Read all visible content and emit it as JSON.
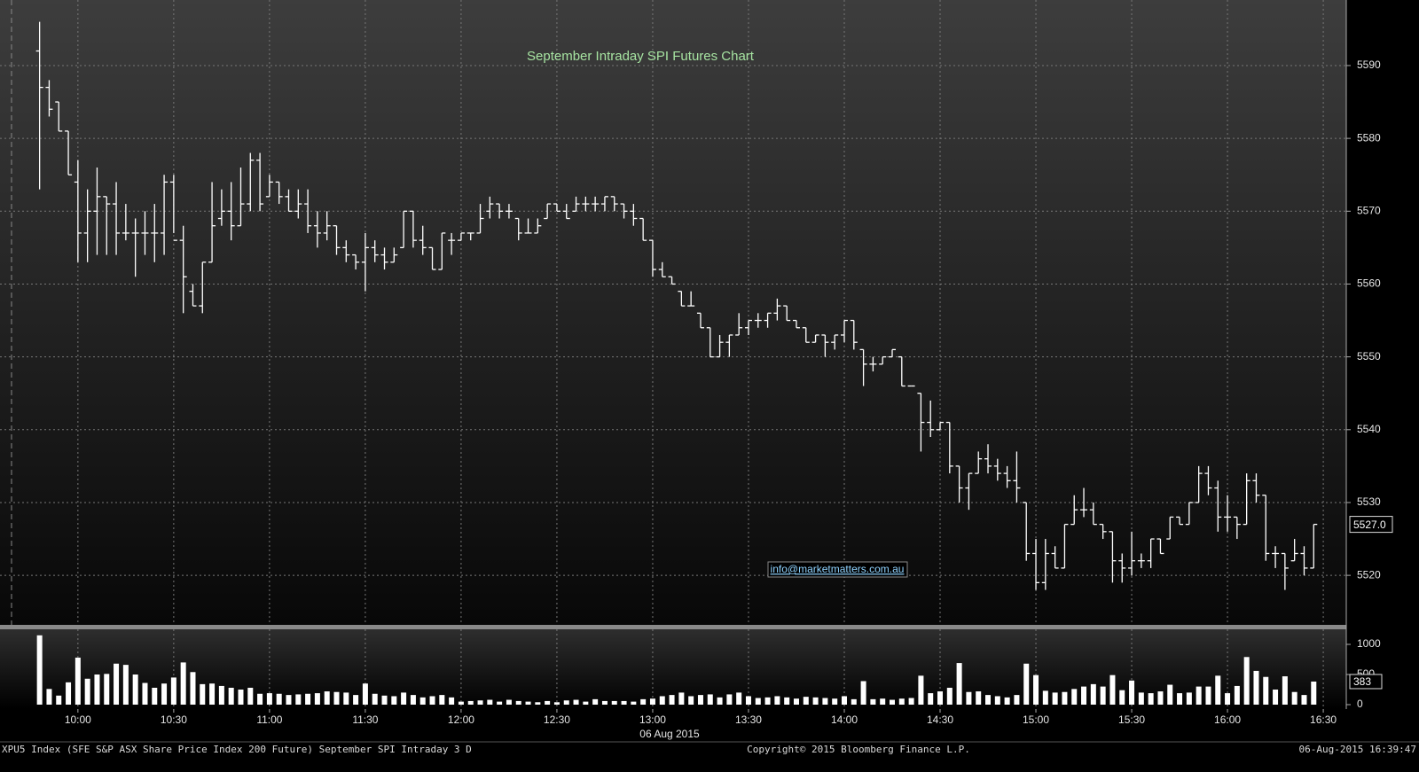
{
  "chart_data": {
    "type": "ohlc",
    "title": "September Intraday SPI Futures Chart",
    "annotation": "info@marketmatters.com.au",
    "x_date_label": "06 Aug 2015",
    "footer_left": "XPU5 Index (SFE S&P ASX Share Price Index 200 Future) September SPI Intraday 3 D",
    "footer_center": "Copyright© 2015 Bloomberg Finance L.P.",
    "footer_right": "06-Aug-2015 16:39:47",
    "color": "#ffffff",
    "grid": true,
    "xlim": [
      575.6,
      997.2
    ],
    "xticks": [
      {
        "value": 600,
        "label": "10:00"
      },
      {
        "value": 630,
        "label": "10:30"
      },
      {
        "value": 660,
        "label": "11:00"
      },
      {
        "value": 690,
        "label": "11:30"
      },
      {
        "value": 720,
        "label": "12:00"
      },
      {
        "value": 750,
        "label": "12:30"
      },
      {
        "value": 780,
        "label": "13:00"
      },
      {
        "value": 810,
        "label": "13:30"
      },
      {
        "value": 840,
        "label": "14:00"
      },
      {
        "value": 870,
        "label": "14:30"
      },
      {
        "value": 900,
        "label": "15:00"
      },
      {
        "value": 930,
        "label": "15:30"
      },
      {
        "value": 960,
        "label": "16:00"
      },
      {
        "value": 990,
        "label": "16:30"
      }
    ],
    "ylim": [
      5513.2,
      5599
    ],
    "yticks": [
      5520,
      5530,
      5540,
      5550,
      5560,
      5570,
      5580,
      5590
    ],
    "x": [
      588,
      591,
      594,
      597,
      600,
      603,
      606,
      609,
      612,
      615,
      618,
      621,
      624,
      627,
      630,
      633,
      636,
      639,
      642,
      645,
      648,
      651,
      654,
      657,
      660,
      663,
      666,
      669,
      672,
      675,
      678,
      681,
      684,
      687,
      690,
      693,
      696,
      699,
      702,
      705,
      708,
      711,
      714,
      717,
      720,
      723,
      726,
      729,
      732,
      735,
      738,
      741,
      744,
      747,
      750,
      753,
      756,
      759,
      762,
      765,
      768,
      771,
      774,
      777,
      780,
      783,
      786,
      789,
      792,
      795,
      798,
      801,
      804,
      807,
      810,
      813,
      816,
      819,
      822,
      825,
      828,
      831,
      834,
      837,
      840,
      843,
      846,
      849,
      852,
      855,
      858,
      861,
      864,
      867,
      870,
      873,
      876,
      879,
      882,
      885,
      888,
      891,
      894,
      897,
      900,
      903,
      906,
      909,
      912,
      915,
      918,
      921,
      924,
      927,
      930,
      933,
      936,
      939,
      942,
      945,
      948,
      951,
      954,
      957,
      960,
      963,
      966,
      969,
      972,
      975,
      978,
      981,
      984,
      987
    ],
    "ohlc": {
      "open": [
        5592,
        5587,
        5585,
        5581,
        5574,
        5567,
        5570,
        5572,
        5571,
        5567,
        5567,
        5567,
        5567,
        5567,
        5574,
        5566,
        5559,
        5557,
        5563,
        5569,
        5570,
        5568,
        5571,
        5577,
        5572,
        5574,
        5572,
        5570,
        5571,
        5568,
        5567,
        5568,
        5565,
        5564,
        5563,
        5565,
        5564,
        5563,
        5565,
        5570,
        5566,
        5565,
        5562,
        5566,
        5566,
        5567,
        5567,
        5570,
        5571,
        5570,
        5569,
        5567,
        5567,
        5569,
        5571,
        5570,
        5570,
        5571,
        5571,
        5571,
        5572,
        5571,
        5570,
        5569,
        5566,
        5562,
        5561,
        5559,
        5557,
        5556,
        5554,
        5550,
        5552,
        5553,
        5554,
        5555,
        5555,
        5556,
        5557,
        5555,
        5554,
        5552,
        5553,
        5552,
        5553,
        5555,
        5551,
        5549,
        5549,
        5550,
        5550,
        5546,
        5545,
        5541,
        5540,
        5541,
        5535,
        5532,
        5534,
        5536,
        5535,
        5534,
        5533,
        5530,
        5523,
        5519,
        5523,
        5521,
        5527,
        5529,
        5529,
        5527,
        5526,
        5522,
        5521,
        5522,
        5522,
        5525,
        5525,
        5528,
        5527,
        5530,
        5534,
        5532,
        5528,
        5528,
        5527,
        5533,
        5531,
        5523,
        5523,
        5522,
        5523,
        5521
      ],
      "high": [
        5596,
        5588,
        5585,
        5581,
        5577,
        5573,
        5576,
        5572,
        5574,
        5571,
        5569,
        5570,
        5571,
        5575,
        5575,
        5568,
        5560,
        5563,
        5574,
        5573,
        5574,
        5576,
        5578,
        5578,
        5575,
        5574,
        5573,
        5573,
        5573,
        5570,
        5570,
        5568,
        5566,
        5564,
        5567,
        5566,
        5565,
        5565,
        5570,
        5570,
        5568,
        5565,
        5567,
        5567,
        5567,
        5567,
        5571,
        5572,
        5571,
        5571,
        5569,
        5569,
        5569,
        5571,
        5571,
        5571,
        5572,
        5572,
        5572,
        5572,
        5572,
        5571,
        5571,
        5569,
        5566,
        5563,
        5561,
        5559,
        5559,
        5556,
        5554,
        5553,
        5553,
        5556,
        5555,
        5556,
        5556,
        5558,
        5557,
        5555,
        5554,
        5553,
        5553,
        5553,
        5555,
        5555,
        5551,
        5550,
        5550,
        5551,
        5550,
        5546,
        5545,
        5544,
        5541,
        5541,
        5535,
        5534,
        5537,
        5538,
        5536,
        5535,
        5537,
        5530,
        5525,
        5525,
        5524,
        5527,
        5531,
        5532,
        5530,
        5527,
        5526,
        5523,
        5526,
        5523,
        5525,
        5525,
        5528,
        5528,
        5530,
        5535,
        5535,
        5533,
        5531,
        5528,
        5534,
        5534,
        5531,
        5524,
        5523,
        5525,
        5524,
        5527
      ],
      "low": [
        5573,
        5583,
        5581,
        5575,
        5563,
        5563,
        5564,
        5564,
        5564,
        5566,
        5561,
        5564,
        5563,
        5564,
        5567,
        5556,
        5557,
        5556,
        5563,
        5568,
        5566,
        5568,
        5570,
        5570,
        5572,
        5571,
        5570,
        5569,
        5567,
        5565,
        5566,
        5564,
        5563,
        5562,
        5559,
        5563,
        5562,
        5563,
        5565,
        5565,
        5564,
        5562,
        5562,
        5564,
        5566,
        5566,
        5567,
        5569,
        5569,
        5569,
        5566,
        5567,
        5567,
        5569,
        5570,
        5569,
        5570,
        5570,
        5570,
        5570,
        5570,
        5569,
        5568,
        5566,
        5561,
        5561,
        5560,
        5557,
        5557,
        5554,
        5550,
        5550,
        5550,
        5553,
        5553,
        5554,
        5554,
        5555,
        5555,
        5554,
        5552,
        5552,
        5550,
        5551,
        5552,
        5551,
        5546,
        5548,
        5549,
        5550,
        5546,
        5546,
        5537,
        5539,
        5540,
        5534,
        5530,
        5529,
        5534,
        5534,
        5533,
        5532,
        5530,
        5522,
        5518,
        5518,
        5521,
        5521,
        5527,
        5528,
        5527,
        5525,
        5519,
        5519,
        5520,
        5521,
        5521,
        5523,
        5525,
        5527,
        5527,
        5530,
        5531,
        5526,
        5526,
        5525,
        5527,
        5530,
        5522,
        5521,
        5518,
        5522,
        5520,
        5521
      ],
      "close": [
        5587,
        5584,
        5581,
        5575,
        5567,
        5570,
        5572,
        5571,
        5567,
        5567,
        5567,
        5567,
        5567,
        5574,
        5566,
        5561,
        5557,
        5563,
        5568,
        5570,
        5568,
        5571,
        5577,
        5571,
        5574,
        5572,
        5570,
        5571,
        5568,
        5567,
        5568,
        5565,
        5564,
        5563,
        5565,
        5564,
        5563,
        5564,
        5570,
        5566,
        5565,
        5562,
        5567,
        5566,
        5567,
        5567,
        5569,
        5571,
        5570,
        5570,
        5567,
        5567,
        5568,
        5571,
        5570,
        5569,
        5571,
        5571,
        5571,
        5572,
        5571,
        5570,
        5569,
        5566,
        5562,
        5561,
        5560,
        5557,
        5557,
        5554,
        5550,
        5552,
        5553,
        5554,
        5555,
        5555,
        5556,
        5557,
        5555,
        5554,
        5552,
        5553,
        5552,
        5553,
        5555,
        5552,
        5549,
        5549,
        5550,
        5551,
        5546,
        5546,
        5541,
        5540,
        5541,
        5535,
        5532,
        5534,
        5536,
        5535,
        5534,
        5533,
        5532,
        5523,
        5519,
        5523,
        5521,
        5527,
        5529,
        5529,
        5527,
        5526,
        5522,
        5521,
        5522,
        5522,
        5525,
        5523,
        5528,
        5527,
        5530,
        5534,
        5532,
        5528,
        5528,
        5527,
        5533,
        5531,
        5523,
        5523,
        5521,
        5523,
        5521,
        5527
      ],
      "value_labels": [
        null,
        null,
        null,
        null,
        null,
        null,
        null,
        null,
        null,
        null,
        null,
        null,
        null,
        null,
        null,
        null,
        null,
        null,
        null,
        null,
        null,
        null,
        null,
        null,
        null,
        null,
        null,
        null,
        null,
        null,
        null,
        null,
        null,
        null,
        null,
        null,
        null,
        null,
        null,
        null,
        null,
        null,
        null,
        null,
        null,
        null,
        null,
        null,
        null,
        null,
        null,
        null,
        null,
        null,
        null,
        null,
        null,
        null,
        null,
        null,
        null,
        null,
        null,
        null,
        null,
        null,
        null,
        null,
        null,
        null,
        null,
        null,
        null,
        null,
        null,
        null,
        null,
        null,
        null,
        null,
        null,
        null,
        null,
        null,
        null,
        null,
        null,
        null,
        null,
        null,
        null,
        null,
        null,
        null,
        null,
        null,
        null,
        null,
        null,
        null,
        null,
        null,
        null,
        null,
        null,
        null,
        null,
        null,
        null,
        null,
        null,
        null,
        null,
        null,
        null,
        null,
        null,
        null,
        null,
        null,
        null,
        null,
        null,
        null,
        null,
        null,
        null,
        null,
        null,
        null,
        null,
        null,
        null,
        "5527.0"
      ]
    },
    "volume": {
      "type": "bar",
      "color": "#ffffff",
      "ylim": [
        -73.5,
        1250
      ],
      "yticks": [
        0,
        500,
        1000
      ],
      "values": [
        1150,
        260,
        150,
        370,
        780,
        430,
        500,
        510,
        680,
        660,
        500,
        360,
        280,
        350,
        450,
        700,
        540,
        340,
        350,
        310,
        280,
        250,
        280,
        180,
        190,
        180,
        160,
        170,
        180,
        190,
        220,
        210,
        200,
        160,
        350,
        180,
        150,
        140,
        200,
        160,
        120,
        140,
        160,
        120,
        50,
        60,
        70,
        80,
        50,
        80,
        60,
        50,
        40,
        60,
        40,
        70,
        80,
        50,
        90,
        60,
        60,
        60,
        50,
        90,
        100,
        140,
        160,
        200,
        140,
        160,
        170,
        120,
        170,
        200,
        140,
        110,
        120,
        140,
        120,
        100,
        130,
        120,
        110,
        100,
        140,
        90,
        390,
        90,
        100,
        80,
        100,
        110,
        480,
        190,
        220,
        280,
        690,
        210,
        220,
        160,
        140,
        120,
        160,
        680,
        490,
        230,
        200,
        210,
        260,
        300,
        340,
        300,
        490,
        240,
        400,
        200,
        190,
        220,
        330,
        190,
        200,
        300,
        300,
        480,
        190,
        310,
        790,
        560,
        460,
        250,
        470,
        210,
        160,
        383
      ]
    }
  }
}
